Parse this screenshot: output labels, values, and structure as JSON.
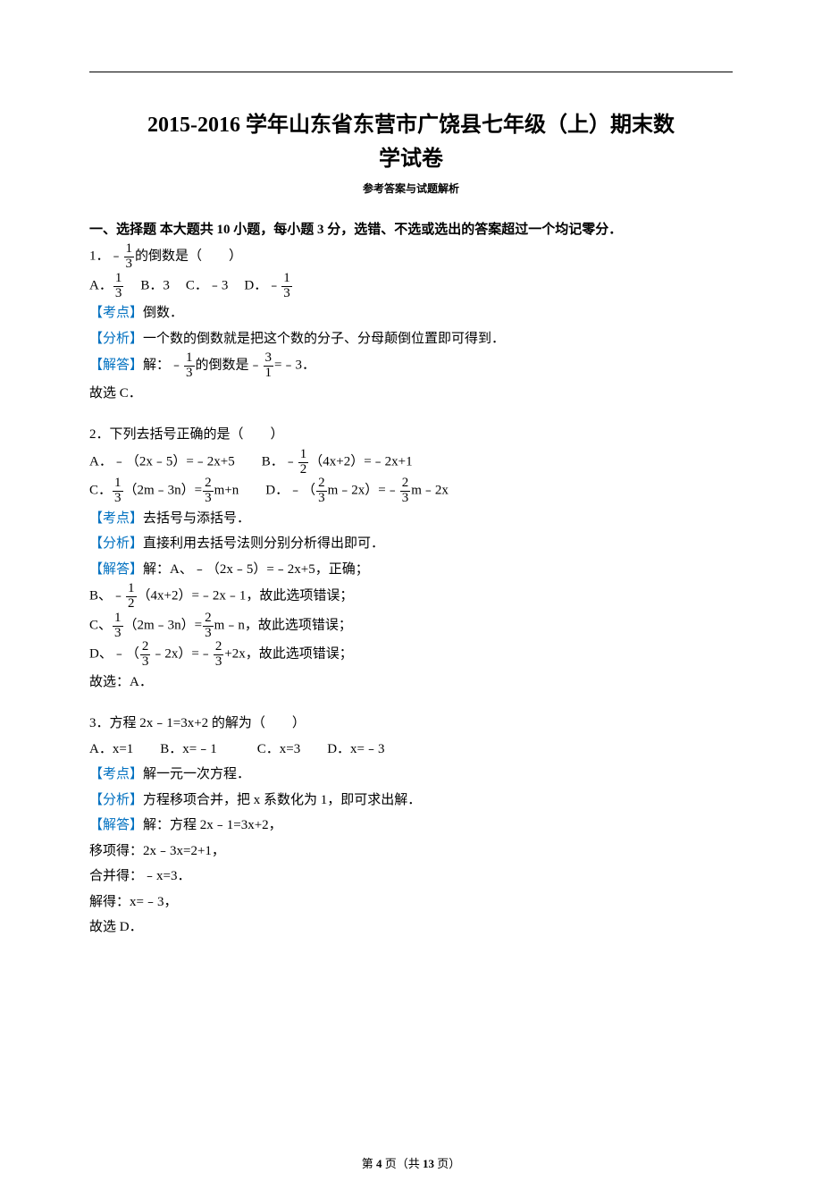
{
  "title_line1": "2015-2016 学年山东省东营市广饶县七年级（上）期末数",
  "title_line2": "学试卷",
  "subtitle": "参考答案与试题解析",
  "section1": "一、选择题 本大题共 10 小题，每小题 3 分，选错、不选或选出的答案超过一个均记零分．",
  "tags": {
    "kd": "【考点】",
    "fx": "【分析】",
    "jd": "【解答】"
  },
  "q1": {
    "stem_a": "1．﹣",
    "stem_b": "的倒数是（　　）",
    "optA_pre": "A．",
    "optB": "B．3",
    "optC": "C．﹣3",
    "optD_pre": "D．﹣",
    "kd": "倒数．",
    "fx": "一个数的倒数就是把这个数的分子、分母颠倒位置即可得到．",
    "jd_a": "解：﹣",
    "jd_b": "的倒数是﹣",
    "jd_c": "=﹣3．",
    "sel": "故选 C．"
  },
  "q2": {
    "stem": "2．下列去括号正确的是（　　）",
    "A_a": "A．﹣（2x﹣5）=﹣2x+5　　B．﹣",
    "A_b": "（4x+2）=﹣2x+1",
    "C_a": "C．",
    "C_b": "（2m﹣3n）=",
    "C_c": "m+n　　D．﹣（",
    "C_d": "m﹣2x）=﹣",
    "C_e": "m﹣2x",
    "kd": "去括号与添括号．",
    "fx": "直接利用去括号法则分别分析得出即可．",
    "jdA": "解：A、﹣（2x﹣5）=﹣2x+5，正确；",
    "jdB_a": "B、﹣",
    "jdB_b": "（4x+2）=﹣2x﹣1，故此选项错误；",
    "jdC_a": "C、",
    "jdC_b": "（2m﹣3n）=",
    "jdC_c": "m﹣n，故此选项错误；",
    "jdD_a": "D、﹣（",
    "jdD_b": "﹣2x）=﹣",
    "jdD_c": "+2x，故此选项错误；",
    "sel": "故选：A．"
  },
  "q3": {
    "stem": "3．方程 2x﹣1=3x+2 的解为（　　）",
    "opts": "A．x=1　　B．x=﹣1　　　C．x=3　　D．x=﹣3",
    "kd": "解一元一次方程．",
    "fx": "方程移项合并，把 x 系数化为 1，即可求出解．",
    "jd1": "解：方程 2x﹣1=3x+2，",
    "jd2": "移项得：2x﹣3x=2+1，",
    "jd3": "合并得：﹣x=3．",
    "jd4": "解得：x=﹣3，",
    "sel": "故选 D．"
  },
  "footer_a": "第 ",
  "footer_b": "4",
  "footer_c": " 页（共 ",
  "footer_d": "13",
  "footer_e": " 页）",
  "frac": {
    "one_three_n": "1",
    "one_three_d": "3",
    "three_one_n": "3",
    "three_one_d": "1",
    "one_two_n": "1",
    "one_two_d": "2",
    "two_three_n": "2",
    "two_three_d": "3"
  }
}
